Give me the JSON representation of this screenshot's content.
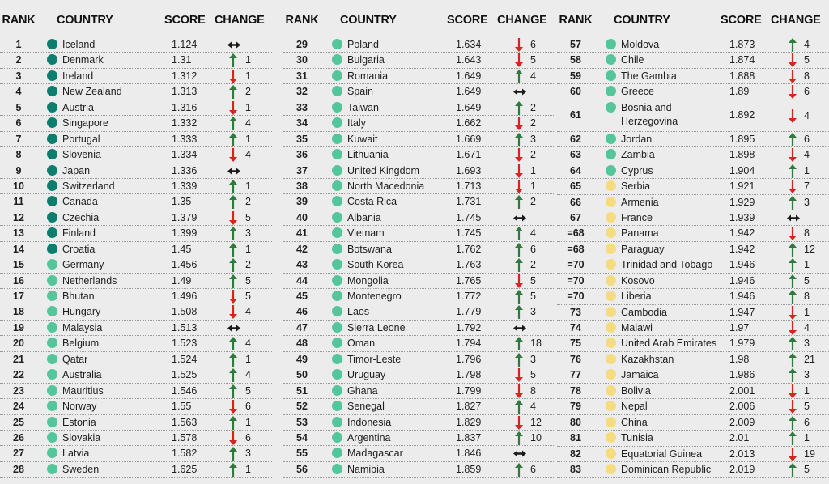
{
  "headers": {
    "rank": "RANK",
    "country": "COUNTRY",
    "score": "SCORE",
    "change": "CHANGE"
  },
  "colors": {
    "very_high": "#0f7d6e",
    "high": "#55c59b",
    "medium": "#f6db7f",
    "up": "#2f7a3d",
    "down": "#d6241e",
    "same": "#1a1a1a"
  },
  "columns": [
    [
      {
        "rank": "1",
        "country": "Iceland",
        "score": "1.124",
        "dir": "same",
        "change": "",
        "tier": "very_high"
      },
      {
        "rank": "2",
        "country": "Denmark",
        "score": "1.31",
        "dir": "up",
        "change": "1",
        "tier": "very_high"
      },
      {
        "rank": "3",
        "country": "Ireland",
        "score": "1.312",
        "dir": "down",
        "change": "1",
        "tier": "very_high"
      },
      {
        "rank": "4",
        "country": "New Zealand",
        "score": "1.313",
        "dir": "up",
        "change": "2",
        "tier": "very_high"
      },
      {
        "rank": "5",
        "country": "Austria",
        "score": "1.316",
        "dir": "down",
        "change": "1",
        "tier": "very_high"
      },
      {
        "rank": "6",
        "country": "Singapore",
        "score": "1.332",
        "dir": "up",
        "change": "4",
        "tier": "very_high"
      },
      {
        "rank": "7",
        "country": "Portugal",
        "score": "1.333",
        "dir": "up",
        "change": "1",
        "tier": "very_high"
      },
      {
        "rank": "8",
        "country": "Slovenia",
        "score": "1.334",
        "dir": "down",
        "change": "4",
        "tier": "very_high"
      },
      {
        "rank": "9",
        "country": "Japan",
        "score": "1.336",
        "dir": "same",
        "change": "",
        "tier": "very_high"
      },
      {
        "rank": "10",
        "country": "Switzerland",
        "score": "1.339",
        "dir": "up",
        "change": "1",
        "tier": "very_high"
      },
      {
        "rank": "11",
        "country": "Canada",
        "score": "1.35",
        "dir": "up",
        "change": "2",
        "tier": "very_high"
      },
      {
        "rank": "12",
        "country": "Czechia",
        "score": "1.379",
        "dir": "down",
        "change": "5",
        "tier": "very_high"
      },
      {
        "rank": "13",
        "country": "Finland",
        "score": "1.399",
        "dir": "up",
        "change": "3",
        "tier": "very_high"
      },
      {
        "rank": "14",
        "country": "Croatia",
        "score": "1.45",
        "dir": "up",
        "change": "1",
        "tier": "very_high"
      },
      {
        "rank": "15",
        "country": "Germany",
        "score": "1.456",
        "dir": "up",
        "change": "2",
        "tier": "high"
      },
      {
        "rank": "16",
        "country": "Netherlands",
        "score": "1.49",
        "dir": "up",
        "change": "5",
        "tier": "high"
      },
      {
        "rank": "17",
        "country": "Bhutan",
        "score": "1.496",
        "dir": "down",
        "change": "5",
        "tier": "high"
      },
      {
        "rank": "18",
        "country": "Hungary",
        "score": "1.508",
        "dir": "down",
        "change": "4",
        "tier": "high"
      },
      {
        "rank": "19",
        "country": "Malaysia",
        "score": "1.513",
        "dir": "same",
        "change": "",
        "tier": "high"
      },
      {
        "rank": "20",
        "country": "Belgium",
        "score": "1.523",
        "dir": "up",
        "change": "4",
        "tier": "high"
      },
      {
        "rank": "21",
        "country": "Qatar",
        "score": "1.524",
        "dir": "up",
        "change": "1",
        "tier": "high"
      },
      {
        "rank": "22",
        "country": "Australia",
        "score": "1.525",
        "dir": "up",
        "change": "4",
        "tier": "high"
      },
      {
        "rank": "23",
        "country": "Mauritius",
        "score": "1.546",
        "dir": "up",
        "change": "5",
        "tier": "high"
      },
      {
        "rank": "24",
        "country": "Norway",
        "score": "1.55",
        "dir": "down",
        "change": "6",
        "tier": "high"
      },
      {
        "rank": "25",
        "country": "Estonia",
        "score": "1.563",
        "dir": "up",
        "change": "1",
        "tier": "high"
      },
      {
        "rank": "26",
        "country": "Slovakia",
        "score": "1.578",
        "dir": "down",
        "change": "6",
        "tier": "high"
      },
      {
        "rank": "27",
        "country": "Latvia",
        "score": "1.582",
        "dir": "up",
        "change": "3",
        "tier": "high"
      },
      {
        "rank": "28",
        "country": "Sweden",
        "score": "1.625",
        "dir": "up",
        "change": "1",
        "tier": "high"
      }
    ],
    [
      {
        "rank": "29",
        "country": "Poland",
        "score": "1.634",
        "dir": "down",
        "change": "6",
        "tier": "high"
      },
      {
        "rank": "30",
        "country": "Bulgaria",
        "score": "1.643",
        "dir": "down",
        "change": "5",
        "tier": "high"
      },
      {
        "rank": "31",
        "country": "Romania",
        "score": "1.649",
        "dir": "up",
        "change": "4",
        "tier": "high"
      },
      {
        "rank": "32",
        "country": "Spain",
        "score": "1.649",
        "dir": "same",
        "change": "",
        "tier": "high"
      },
      {
        "rank": "33",
        "country": "Taiwan",
        "score": "1.649",
        "dir": "up",
        "change": "2",
        "tier": "high"
      },
      {
        "rank": "34",
        "country": "Italy",
        "score": "1.662",
        "dir": "down",
        "change": "2",
        "tier": "high"
      },
      {
        "rank": "35",
        "country": "Kuwait",
        "score": "1.669",
        "dir": "up",
        "change": "3",
        "tier": "high"
      },
      {
        "rank": "36",
        "country": "Lithuania",
        "score": "1.671",
        "dir": "down",
        "change": "2",
        "tier": "high"
      },
      {
        "rank": "37",
        "country": "United Kingdom",
        "score": "1.693",
        "dir": "down",
        "change": "1",
        "tier": "high"
      },
      {
        "rank": "38",
        "country": "North Macedonia",
        "score": "1.713",
        "dir": "down",
        "change": "1",
        "tier": "high"
      },
      {
        "rank": "39",
        "country": "Costa Rica",
        "score": "1.731",
        "dir": "up",
        "change": "2",
        "tier": "high"
      },
      {
        "rank": "40",
        "country": "Albania",
        "score": "1.745",
        "dir": "same",
        "change": "",
        "tier": "high"
      },
      {
        "rank": "41",
        "country": "Vietnam",
        "score": "1.745",
        "dir": "up",
        "change": "4",
        "tier": "high"
      },
      {
        "rank": "42",
        "country": "Botswana",
        "score": "1.762",
        "dir": "up",
        "change": "6",
        "tier": "high"
      },
      {
        "rank": "43",
        "country": "South Korea",
        "score": "1.763",
        "dir": "up",
        "change": "2",
        "tier": "high"
      },
      {
        "rank": "44",
        "country": "Mongolia",
        "score": "1.765",
        "dir": "down",
        "change": "5",
        "tier": "high"
      },
      {
        "rank": "45",
        "country": "Montenegro",
        "score": "1.772",
        "dir": "up",
        "change": "5",
        "tier": "high"
      },
      {
        "rank": "46",
        "country": "Laos",
        "score": "1.779",
        "dir": "up",
        "change": "3",
        "tier": "high"
      },
      {
        "rank": "47",
        "country": "Sierra Leone",
        "score": "1.792",
        "dir": "same",
        "change": "",
        "tier": "high"
      },
      {
        "rank": "48",
        "country": "Oman",
        "score": "1.794",
        "dir": "up",
        "change": "18",
        "tier": "high"
      },
      {
        "rank": "49",
        "country": "Timor-Leste",
        "score": "1.796",
        "dir": "up",
        "change": "3",
        "tier": "high"
      },
      {
        "rank": "50",
        "country": "Uruguay",
        "score": "1.798",
        "dir": "down",
        "change": "5",
        "tier": "high"
      },
      {
        "rank": "51",
        "country": "Ghana",
        "score": "1.799",
        "dir": "down",
        "change": "8",
        "tier": "high"
      },
      {
        "rank": "52",
        "country": "Senegal",
        "score": "1.827",
        "dir": "up",
        "change": "4",
        "tier": "high"
      },
      {
        "rank": "53",
        "country": "Indonesia",
        "score": "1.829",
        "dir": "down",
        "change": "12",
        "tier": "high"
      },
      {
        "rank": "54",
        "country": "Argentina",
        "score": "1.837",
        "dir": "up",
        "change": "10",
        "tier": "high"
      },
      {
        "rank": "55",
        "country": "Madagascar",
        "score": "1.846",
        "dir": "same",
        "change": "",
        "tier": "high"
      },
      {
        "rank": "56",
        "country": "Namibia",
        "score": "1.859",
        "dir": "up",
        "change": "6",
        "tier": "high"
      }
    ],
    [
      {
        "rank": "57",
        "country": "Moldova",
        "score": "1.873",
        "dir": "up",
        "change": "4",
        "tier": "high"
      },
      {
        "rank": "58",
        "country": "Chile",
        "score": "1.874",
        "dir": "down",
        "change": "5",
        "tier": "high"
      },
      {
        "rank": "59",
        "country": "The Gambia",
        "score": "1.888",
        "dir": "down",
        "change": "8",
        "tier": "high"
      },
      {
        "rank": "60",
        "country": "Greece",
        "score": "1.89",
        "dir": "down",
        "change": "6",
        "tier": "high"
      },
      {
        "rank": "61",
        "country": "Bosnia and",
        "country2": "Herzegovina",
        "score": "1.892",
        "dir": "down",
        "change": "4",
        "tier": "high"
      },
      {
        "rank": "62",
        "country": "Jordan",
        "score": "1.895",
        "dir": "up",
        "change": "6",
        "tier": "high"
      },
      {
        "rank": "63",
        "country": "Zambia",
        "score": "1.898",
        "dir": "down",
        "change": "4",
        "tier": "high"
      },
      {
        "rank": "64",
        "country": "Cyprus",
        "score": "1.904",
        "dir": "up",
        "change": "1",
        "tier": "high"
      },
      {
        "rank": "65",
        "country": "Serbia",
        "score": "1.921",
        "dir": "down",
        "change": "7",
        "tier": "medium"
      },
      {
        "rank": "66",
        "country": "Armenia",
        "score": "1.929",
        "dir": "up",
        "change": "3",
        "tier": "medium"
      },
      {
        "rank": "67",
        "country": "France",
        "score": "1.939",
        "dir": "same",
        "change": "",
        "tier": "medium"
      },
      {
        "rank": "=68",
        "country": "Panama",
        "score": "1.942",
        "dir": "down",
        "change": "8",
        "tier": "medium"
      },
      {
        "rank": "=68",
        "country": "Paraguay",
        "score": "1.942",
        "dir": "up",
        "change": "12",
        "tier": "medium"
      },
      {
        "rank": "=70",
        "country": "Trinidad and Tobago",
        "score": "1.946",
        "dir": "up",
        "change": "1",
        "tier": "medium"
      },
      {
        "rank": "=70",
        "country": "Kosovo",
        "score": "1.946",
        "dir": "up",
        "change": "5",
        "tier": "medium"
      },
      {
        "rank": "=70",
        "country": "Liberia",
        "score": "1.946",
        "dir": "up",
        "change": "8",
        "tier": "medium"
      },
      {
        "rank": "73",
        "country": "Cambodia",
        "score": "1.947",
        "dir": "down",
        "change": "1",
        "tier": "medium"
      },
      {
        "rank": "74",
        "country": "Malawi",
        "score": "1.97",
        "dir": "down",
        "change": "4",
        "tier": "medium"
      },
      {
        "rank": "75",
        "country": "United Arab Emirates",
        "score": "1.979",
        "dir": "up",
        "change": "3",
        "tier": "medium"
      },
      {
        "rank": "76",
        "country": "Kazakhstan",
        "score": "1.98",
        "dir": "up",
        "change": "21",
        "tier": "medium"
      },
      {
        "rank": "77",
        "country": "Jamaica",
        "score": "1.986",
        "dir": "up",
        "change": "3",
        "tier": "medium"
      },
      {
        "rank": "78",
        "country": "Bolivia",
        "score": "2.001",
        "dir": "down",
        "change": "1",
        "tier": "medium"
      },
      {
        "rank": "79",
        "country": "Nepal",
        "score": "2.006",
        "dir": "down",
        "change": "5",
        "tier": "medium"
      },
      {
        "rank": "80",
        "country": "China",
        "score": "2.009",
        "dir": "up",
        "change": "6",
        "tier": "medium"
      },
      {
        "rank": "81",
        "country": "Tunisia",
        "score": "2.01",
        "dir": "up",
        "change": "1",
        "tier": "medium"
      },
      {
        "rank": "82",
        "country": "Equatorial Guinea",
        "score": "2.013",
        "dir": "down",
        "change": "19",
        "tier": "medium"
      },
      {
        "rank": "83",
        "country": "Dominican Republic",
        "score": "2.019",
        "dir": "up",
        "change": "5",
        "tier": "medium"
      }
    ]
  ]
}
